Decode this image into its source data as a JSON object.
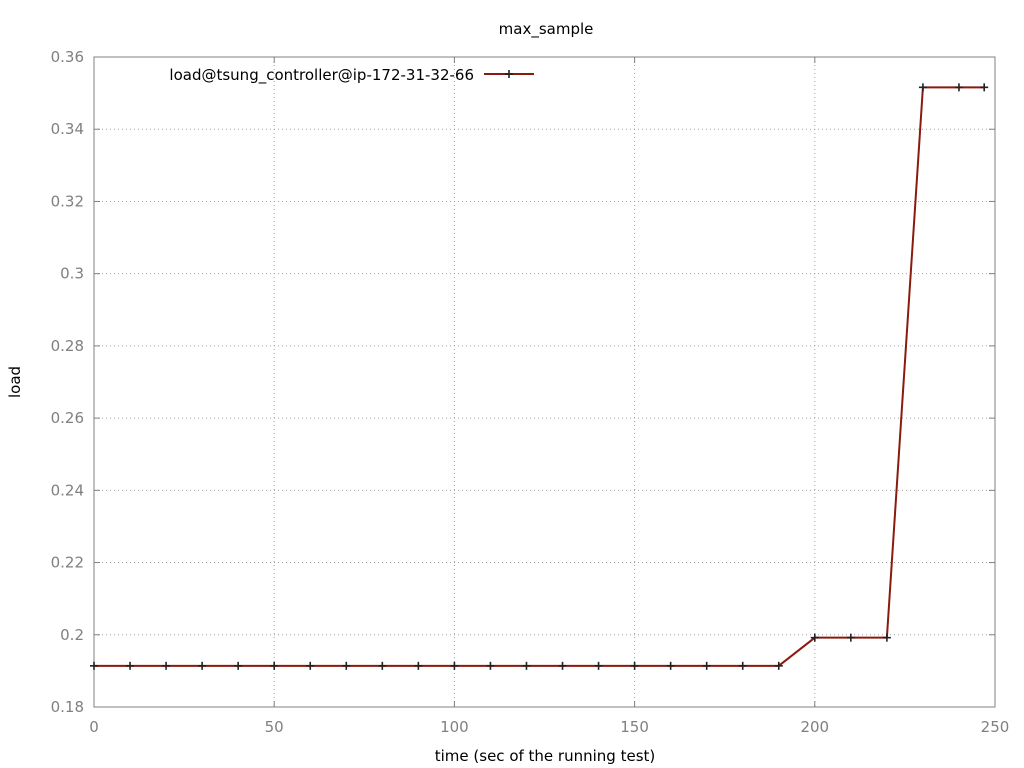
{
  "chart_data": {
    "type": "line",
    "title": "max_sample",
    "xlabel": "time (sec of the running test)",
    "ylabel": "load",
    "xlim": [
      0,
      250
    ],
    "ylim": [
      0.18,
      0.36
    ],
    "xticks": [
      0,
      50,
      100,
      150,
      200,
      250
    ],
    "xtick_labels": [
      "0",
      "50",
      "100",
      "150",
      "200",
      "250"
    ],
    "yticks": [
      0.18,
      0.2,
      0.22,
      0.24,
      0.26,
      0.28,
      0.3,
      0.32,
      0.34,
      0.36
    ],
    "ytick_labels": [
      "0.18",
      "0.2",
      "0.22",
      "0.24",
      "0.26",
      "0.28",
      "0.3",
      "0.32",
      "0.34",
      "0.36"
    ],
    "grid": true,
    "legend_position": "top-left",
    "series": [
      {
        "name": "load@tsung_controller@ip-172-31-32-66",
        "color": "#8b1a0e",
        "marker": "plus",
        "x": [
          0,
          10,
          20,
          30,
          40,
          50,
          60,
          70,
          80,
          90,
          100,
          110,
          120,
          130,
          140,
          150,
          160,
          170,
          180,
          190,
          200,
          210,
          220,
          230,
          240,
          247
        ],
        "y": [
          0.1914,
          0.1914,
          0.1914,
          0.1914,
          0.1914,
          0.1914,
          0.1914,
          0.1914,
          0.1914,
          0.1914,
          0.1914,
          0.1914,
          0.1914,
          0.1914,
          0.1914,
          0.1914,
          0.1914,
          0.1914,
          0.1914,
          0.1914,
          0.1992,
          0.1992,
          0.1992,
          0.3516,
          0.3516,
          0.3516
        ]
      }
    ]
  }
}
